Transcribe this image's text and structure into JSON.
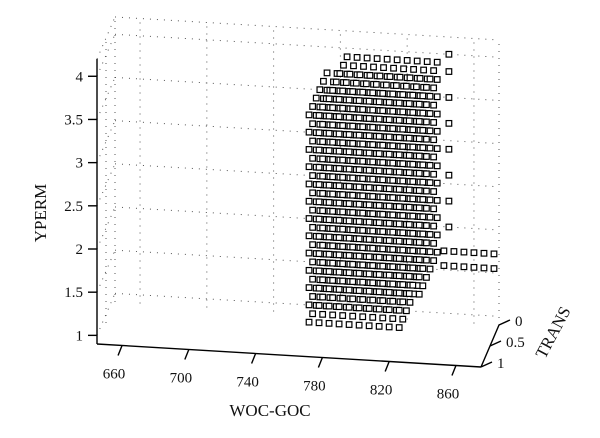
{
  "chart_data": {
    "type": "scatter",
    "projection": "3d",
    "marker": "open-square",
    "grid": true,
    "axes": {
      "x": {
        "label": "WOC-GOC",
        "ticks": [
          660,
          700,
          740,
          780,
          820,
          860
        ],
        "range": [
          645,
          875
        ]
      },
      "y": {
        "label": "TRANS",
        "ticks": [
          0,
          0.5,
          1
        ],
        "range": [
          0,
          1
        ]
      },
      "z": {
        "label": "YPERM",
        "ticks": [
          1,
          1.5,
          2,
          2.5,
          3,
          3.5,
          4
        ],
        "range": [
          0.9,
          4.2
        ]
      }
    },
    "points_description": "Dense lattice of open-square markers; WOC-GOC approx 770–840, YPERM approx 1.3–4.0, TRANS 0–1; plus a tail along YPERM 1.5–1.7 extending toward WOC-GOC 870 at TRANS 0.",
    "lattice": {
      "woc_goc": [
        772,
        778,
        784,
        790,
        796,
        802,
        808,
        814,
        820,
        826,
        832,
        838
      ],
      "yperm": [
        1.3,
        1.5,
        1.7,
        1.9,
        2.1,
        2.3,
        2.5,
        2.7,
        2.9,
        3.1,
        3.3,
        3.5,
        3.7,
        3.9
      ],
      "trans": [
        0,
        0.2,
        0.4,
        0.6,
        0.8,
        1
      ]
    },
    "tail": {
      "trans": 0,
      "woc_goc": [
        842,
        848,
        854,
        860,
        866,
        872
      ],
      "yperm": [
        1.55,
        1.72
      ]
    },
    "edge_column": {
      "trans": 0,
      "woc_goc": 845,
      "yperm": [
        2.0,
        2.3,
        2.6,
        2.9,
        3.2,
        3.5,
        3.8,
        4.0
      ]
    }
  }
}
